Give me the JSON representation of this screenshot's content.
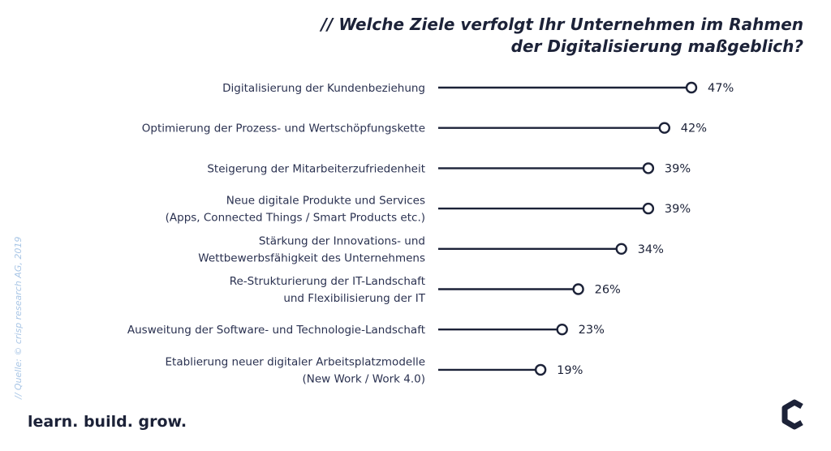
{
  "title_lines": [
    "// Welche Ziele verfolgt Ihr Unternehmen im Rahmen",
    "der Digitalisierung maßgeblich?"
  ],
  "source": "// Quelle: © crisp research AG, 2019",
  "tagline": "learn. build. grow.",
  "colors": {
    "line": "#1c2238",
    "marker_fill": "#ffffff",
    "source": "#a9c6e6"
  },
  "chart_data": {
    "type": "lollipop",
    "categories": [
      [
        "Digitalisierung der Kundenbeziehung"
      ],
      [
        "Optimierung der Prozess- und Wertschöpfungskette"
      ],
      [
        "Steigerung der Mitarbeiterzufriedenheit"
      ],
      [
        "Neue digitale Produkte und Services",
        "(Apps, Connected Things / Smart Products etc.)"
      ],
      [
        "Stärkung der Innovations- und",
        "Wettbewerbsfähigkeit des Unternehmens"
      ],
      [
        "Re-Strukturierung der IT-Landschaft",
        "und Flexibilisierung der IT"
      ],
      [
        "Ausweitung der Software- und Technologie-Landschaft"
      ],
      [
        "Etablierung neuer digitaler Arbeitsplatzmodelle",
        "(New Work / Work 4.0)"
      ]
    ],
    "values": [
      47,
      42,
      39,
      39,
      34,
      26,
      23,
      19
    ],
    "value_labels": [
      "47%",
      "42%",
      "39%",
      "39%",
      "34%",
      "26%",
      "23%",
      "19%"
    ],
    "unit": "%",
    "xlim": [
      0,
      47
    ]
  }
}
